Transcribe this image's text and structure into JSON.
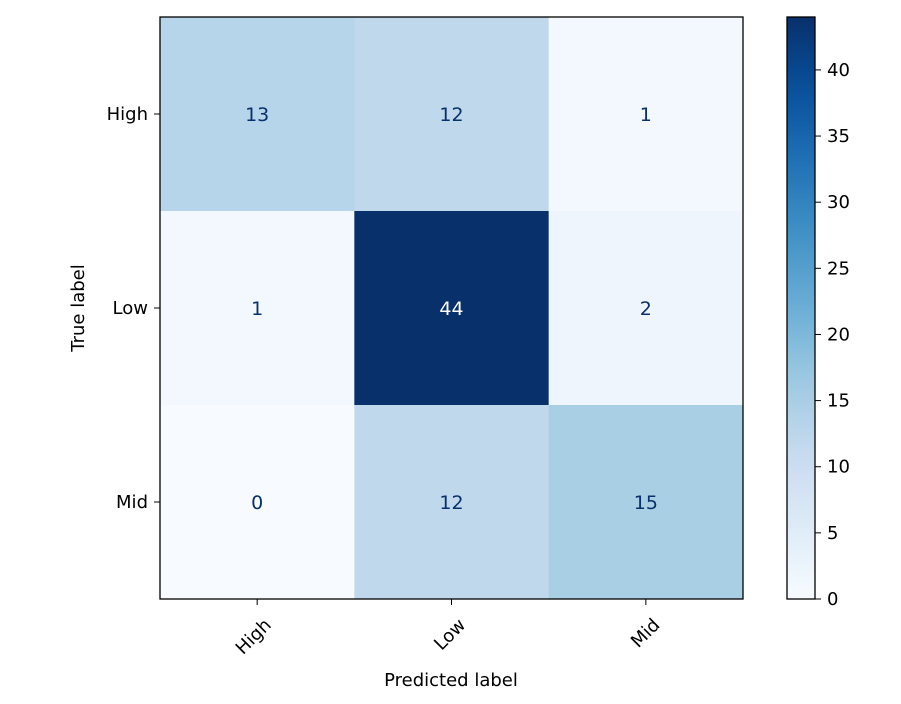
{
  "chart_data": {
    "type": "heatmap",
    "title": "",
    "xlabel": "Predicted label",
    "ylabel": "True label",
    "x_categories": [
      "High",
      "Low",
      "Mid"
    ],
    "y_categories": [
      "High",
      "Low",
      "Mid"
    ],
    "values": [
      [
        13,
        12,
        1
      ],
      [
        1,
        44,
        2
      ],
      [
        0,
        12,
        15
      ]
    ],
    "colormap": "Blues",
    "color_range": [
      0,
      44
    ],
    "colorbar_ticks": [
      0,
      5,
      10,
      15,
      20,
      25,
      30,
      35,
      40
    ],
    "grid": false,
    "colors": {
      "low": "#f7fbff",
      "high": "#08306b",
      "text_dark": "#08306b",
      "text_light": "#ffffff"
    }
  }
}
